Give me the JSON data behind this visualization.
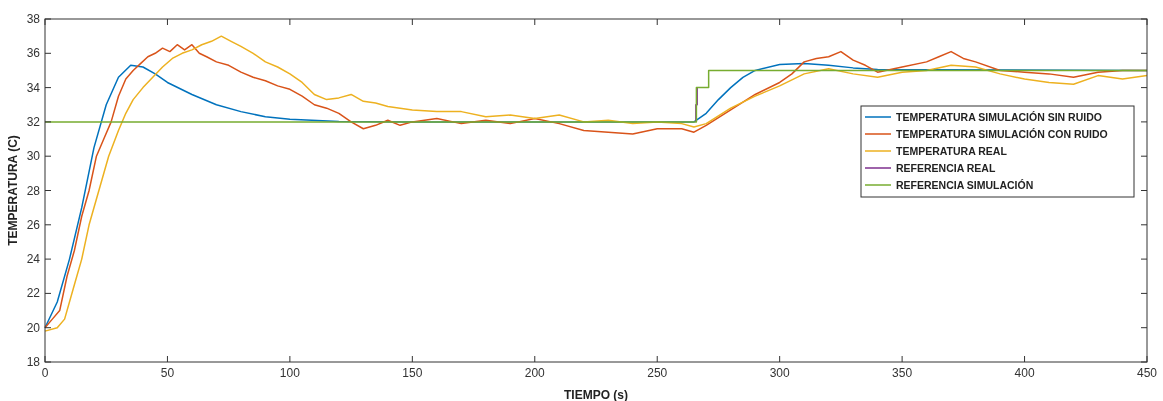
{
  "chart_data": {
    "type": "line",
    "xlabel": "TIEMPO (s)",
    "ylabel": "TEMPERATURA (C)",
    "xlim": [
      0,
      450
    ],
    "ylim": [
      18,
      38
    ],
    "xticks": [
      0,
      50,
      100,
      150,
      200,
      250,
      300,
      350,
      400,
      450
    ],
    "yticks": [
      18,
      20,
      22,
      24,
      26,
      28,
      30,
      32,
      34,
      36,
      38
    ],
    "grid": false,
    "legend": "right",
    "line_style": "solid",
    "marker": "none",
    "series": [
      {
        "name": "TEMPERATURA SIMULACIÓN SIN RUIDO",
        "color": "#0072bd",
        "x": [
          0,
          5,
          10,
          15,
          20,
          25,
          30,
          35,
          40,
          45,
          50,
          60,
          70,
          80,
          90,
          100,
          120,
          150,
          265,
          270,
          275,
          280,
          285,
          290,
          300,
          310,
          320,
          330,
          340,
          450
        ],
        "values": [
          20,
          21.5,
          24,
          27,
          30.5,
          33,
          34.6,
          35.3,
          35.2,
          34.8,
          34.3,
          33.6,
          33,
          32.6,
          32.3,
          32.15,
          32.03,
          32,
          32,
          32.5,
          33.3,
          34,
          34.6,
          35,
          35.35,
          35.4,
          35.3,
          35.15,
          35.05,
          35
        ]
      },
      {
        "name": "TEMPERATURA SIMULACIÓN CON RUIDO",
        "color": "#d95319",
        "x": [
          0,
          3,
          6,
          9,
          12,
          15,
          18,
          21,
          24,
          27,
          30,
          33,
          36,
          39,
          42,
          45,
          48,
          51,
          54,
          57,
          60,
          63,
          66,
          70,
          75,
          80,
          85,
          90,
          95,
          100,
          105,
          110,
          115,
          120,
          125,
          130,
          135,
          140,
          145,
          150,
          160,
          170,
          180,
          190,
          200,
          210,
          220,
          230,
          240,
          250,
          260,
          265,
          270,
          280,
          290,
          300,
          305,
          310,
          315,
          320,
          325,
          330,
          335,
          340,
          350,
          360,
          365,
          370,
          375,
          380,
          390,
          400,
          410,
          420,
          430,
          440,
          450
        ],
        "values": [
          20,
          20.5,
          21,
          23,
          24.5,
          26.5,
          28,
          30,
          31,
          32,
          33.5,
          34.5,
          35,
          35.4,
          35.8,
          36,
          36.3,
          36.1,
          36.5,
          36.2,
          36.5,
          36,
          35.8,
          35.5,
          35.3,
          34.9,
          34.6,
          34.4,
          34.1,
          33.9,
          33.5,
          33,
          32.8,
          32.5,
          32,
          31.6,
          31.8,
          32.1,
          31.8,
          32,
          32.2,
          31.9,
          32.1,
          31.9,
          32.2,
          31.9,
          31.5,
          31.4,
          31.3,
          31.6,
          31.6,
          31.4,
          31.8,
          32.7,
          33.6,
          34.3,
          34.8,
          35.5,
          35.7,
          35.8,
          36.1,
          35.6,
          35.3,
          34.9,
          35.2,
          35.5,
          35.8,
          36.1,
          35.7,
          35.5,
          35,
          34.9,
          34.8,
          34.6,
          34.9,
          35,
          35
        ]
      },
      {
        "name": "TEMPERATURA REAL",
        "color": "#edb120",
        "x": [
          0,
          5,
          8,
          12,
          15,
          18,
          22,
          26,
          30,
          33,
          36,
          40,
          44,
          48,
          52,
          56,
          60,
          64,
          68,
          72,
          76,
          80,
          85,
          90,
          95,
          100,
          105,
          110,
          115,
          120,
          125,
          130,
          135,
          140,
          145,
          150,
          160,
          170,
          180,
          190,
          200,
          210,
          220,
          230,
          240,
          250,
          260,
          265,
          270,
          280,
          290,
          300,
          310,
          320,
          330,
          340,
          350,
          360,
          370,
          380,
          390,
          400,
          410,
          420,
          430,
          440,
          450
        ],
        "values": [
          19.8,
          20,
          20.5,
          22.5,
          24,
          26,
          28,
          30,
          31.5,
          32.5,
          33.3,
          34,
          34.6,
          35.2,
          35.7,
          36,
          36.2,
          36.5,
          36.7,
          37,
          36.7,
          36.4,
          36,
          35.5,
          35.2,
          34.8,
          34.3,
          33.6,
          33.3,
          33.4,
          33.6,
          33.2,
          33.1,
          32.9,
          32.8,
          32.7,
          32.6,
          32.6,
          32.3,
          32.4,
          32.2,
          32.4,
          32,
          32.1,
          31.9,
          32,
          31.9,
          31.7,
          31.9,
          32.8,
          33.5,
          34.1,
          34.8,
          35.1,
          34.8,
          34.6,
          34.9,
          35,
          35.3,
          35.2,
          34.8,
          34.5,
          34.3,
          34.2,
          34.7,
          34.5,
          34.7
        ]
      },
      {
        "name": "REFERENCIA REAL",
        "color": "#7e2f8e",
        "x": [
          265.8,
          265.8,
          266.3,
          266.3
        ],
        "values": [
          32,
          33,
          33,
          34
        ]
      },
      {
        "name": "REFERENCIA SIMULACIÓN",
        "color": "#77ac30",
        "x": [
          0,
          266,
          266,
          271,
          271,
          450
        ],
        "values": [
          32,
          32,
          34,
          34,
          35,
          35
        ]
      }
    ]
  }
}
